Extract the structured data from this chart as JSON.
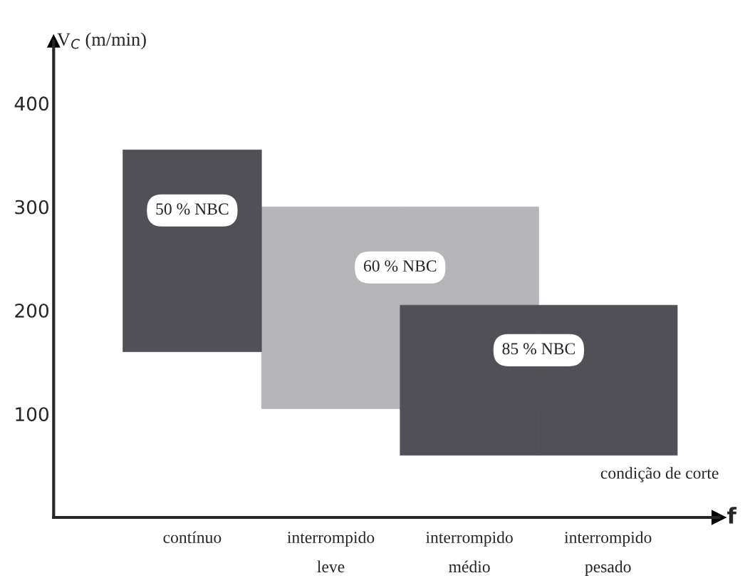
{
  "chart_data": {
    "type": "bar",
    "ylabel": "V$_{C}$ (m/min)",
    "xlabel": "f",
    "categories": [
      "contínuo",
      "interrompido\nleve",
      "interrompido\nmédio",
      "interrompido\npesado"
    ],
    "ylim": [
      0,
      460
    ],
    "yticks": [
      100,
      200,
      300,
      400
    ],
    "series": [
      {
        "name": "60 % NBC",
        "color": "#b5b5b8",
        "values": [
          null,
          195,
          195,
          null
        ],
        "base": [
          null,
          105,
          105,
          null
        ]
      },
      {
        "name": "50 % NBC",
        "color": "#505056",
        "values": [
          195,
          null,
          null,
          null
        ],
        "base": [
          160,
          null,
          null,
          null
        ]
      },
      {
        "name": "85 % NBC",
        "color": "#505056",
        "values": [
          null,
          null,
          145,
          145
        ],
        "base": [
          null,
          null,
          60,
          60
        ]
      }
    ],
    "annotations": [
      "condição de corte"
    ],
    "grid": false,
    "legend": false
  }
}
